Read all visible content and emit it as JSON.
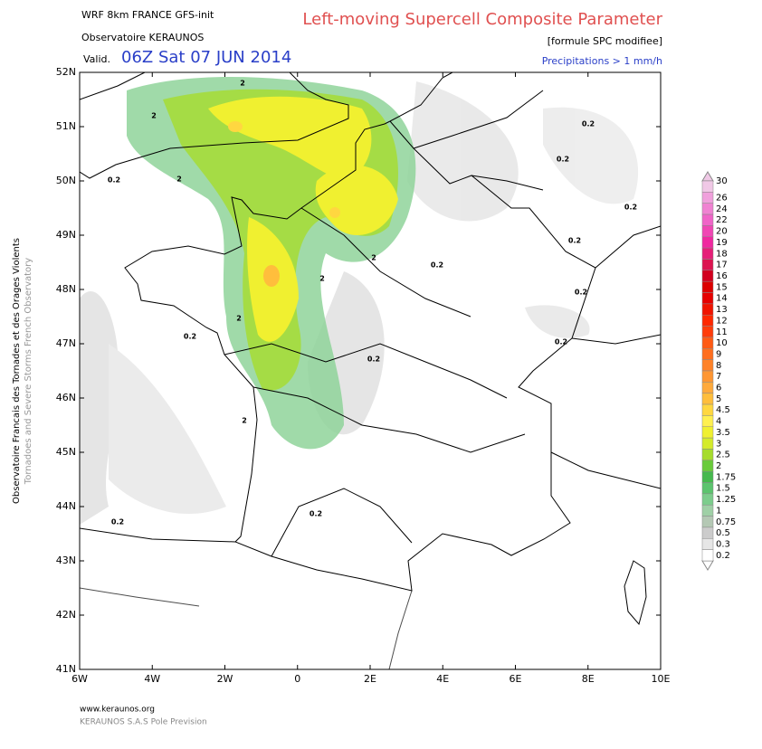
{
  "header": {
    "model": "WRF 8km FRANCE  GFS-init",
    "org": "Observatoire KERAUNOS",
    "valid_label": "Valid.",
    "valid_time": "06Z Sat 07 JUN 2014",
    "title": "Left-moving Supercell Composite Parameter",
    "subtitle": "[formule SPC modifiee]",
    "note": "Precipitations > 1 mm/h"
  },
  "axes": {
    "lat_labels": [
      "52N",
      "51N",
      "50N",
      "49N",
      "48N",
      "47N",
      "46N",
      "45N",
      "44N",
      "43N",
      "42N",
      "41N"
    ],
    "lon_labels": [
      "6W",
      "4W",
      "2W",
      "0",
      "2E",
      "4E",
      "6E",
      "8E",
      "10E"
    ]
  },
  "colorbar": {
    "labels": [
      "30",
      "26",
      "24",
      "22",
      "20",
      "19",
      "18",
      "17",
      "16",
      "15",
      "14",
      "13",
      "12",
      "11",
      "10",
      "9",
      "8",
      "7",
      "6",
      "5",
      "4.5",
      "4",
      "3.5",
      "3",
      "2.5",
      "2",
      "1.75",
      "1.5",
      "1.25",
      "1",
      "0.75",
      "0.5",
      "0.3",
      "0.2"
    ],
    "colors": [
      "#f0c8e6",
      "#f0a0dc",
      "#f082d2",
      "#f064c8",
      "#f046b4",
      "#f028a0",
      "#e61e78",
      "#dc1450",
      "#d2001e",
      "#dc0000",
      "#e60000",
      "#f01400",
      "#ff2800",
      "#ff3c0a",
      "#ff5a14",
      "#ff6e1e",
      "#ff8228",
      "#ff9632",
      "#ffaa3c",
      "#ffbe3c",
      "#ffd740",
      "#fff050",
      "#f0f030",
      "#d4eb2a",
      "#a6dc2c",
      "#6acb3a",
      "#46b94e",
      "#5cc46e",
      "#7ccd8c",
      "#9fd0a6",
      "#b4c8b4",
      "#cccccc",
      "#e6e6e6",
      "#ffffff"
    ]
  },
  "map": {
    "contour_labels": [
      "2",
      "2",
      "0.2",
      "0.2",
      "2",
      "0.2",
      "0.2",
      "0.2",
      "2",
      "0.2",
      "2",
      "0.2",
      "2",
      "0.2",
      "0.2",
      "0.2",
      "2",
      "0.2",
      "0.2"
    ]
  },
  "side": {
    "fr": "Observatoire Francais des Tornades et des Orages Violents",
    "en": "Tornadoes and Severe Storms French Observatory"
  },
  "footer": {
    "url": "www.keraunos.org",
    "company": "KERAUNOS S.A.S Pole Prevision"
  }
}
